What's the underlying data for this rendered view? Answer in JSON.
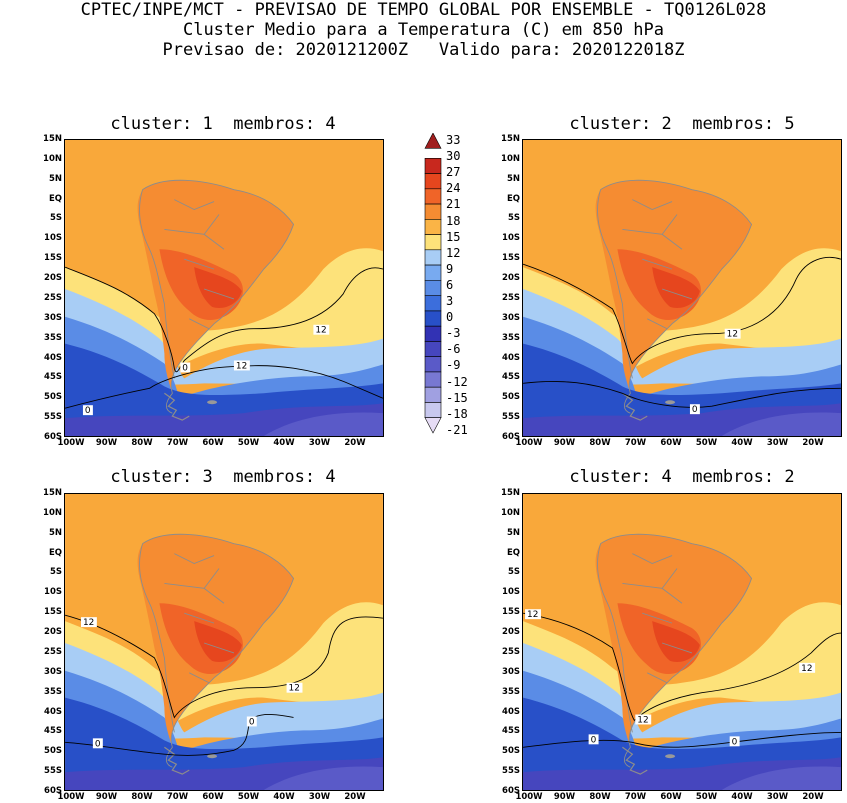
{
  "header": {
    "line1": "CPTEC/INPE/MCT - PREVISAO DE TEMPO GLOBAL POR ENSEMBLE - TQ0126L028",
    "line2": "Cluster Medio para a Temperatura (C) em 850 hPa",
    "line3": "Previsao de: 2020121200Z   Valido para: 2020122018Z"
  },
  "panels": [
    {
      "title": "cluster: 1  membros: 4"
    },
    {
      "title": "cluster: 2  membros: 5"
    },
    {
      "title": "cluster: 3  membros: 4"
    },
    {
      "title": "cluster: 4  membros: 2"
    }
  ],
  "lat_labels": [
    "15N",
    "10N",
    "5N",
    "EQ",
    "5S",
    "10S",
    "15S",
    "20S",
    "25S",
    "30S",
    "35S",
    "40S",
    "45S",
    "50S",
    "55S",
    "60S"
  ],
  "lon_labels": [
    "100W",
    "90W",
    "80W",
    "70W",
    "60W",
    "50W",
    "40W",
    "30W",
    "20W"
  ],
  "colorbar": {
    "levels": [
      "33",
      "30",
      "27",
      "24",
      "21",
      "18",
      "15",
      "12",
      "9",
      "6",
      "3",
      "0",
      "-3",
      "-6",
      "-9",
      "-12",
      "-15",
      "-18",
      "-21"
    ],
    "colors": [
      "#a01e1e",
      "#c8281e",
      "#e6461e",
      "#f06428",
      "#f58c32",
      "#fab446",
      "#fde27a",
      "#a8cdf5",
      "#78aaf0",
      "#5a8ce6",
      "#3c6edc",
      "#2850c8",
      "#3232b4",
      "#4646be",
      "#5a5ac8",
      "#7878d2",
      "#a0a0e1",
      "#c8c8ee",
      "#e6dcf5"
    ]
  },
  "contour_labels": {
    "p1": [
      "12",
      "0",
      "12",
      "0"
    ],
    "p2": [
      "12",
      "0"
    ],
    "p3": [
      "12",
      "12",
      "0",
      "0"
    ],
    "p4": [
      "12",
      "12",
      "12",
      "0",
      "0"
    ]
  }
}
